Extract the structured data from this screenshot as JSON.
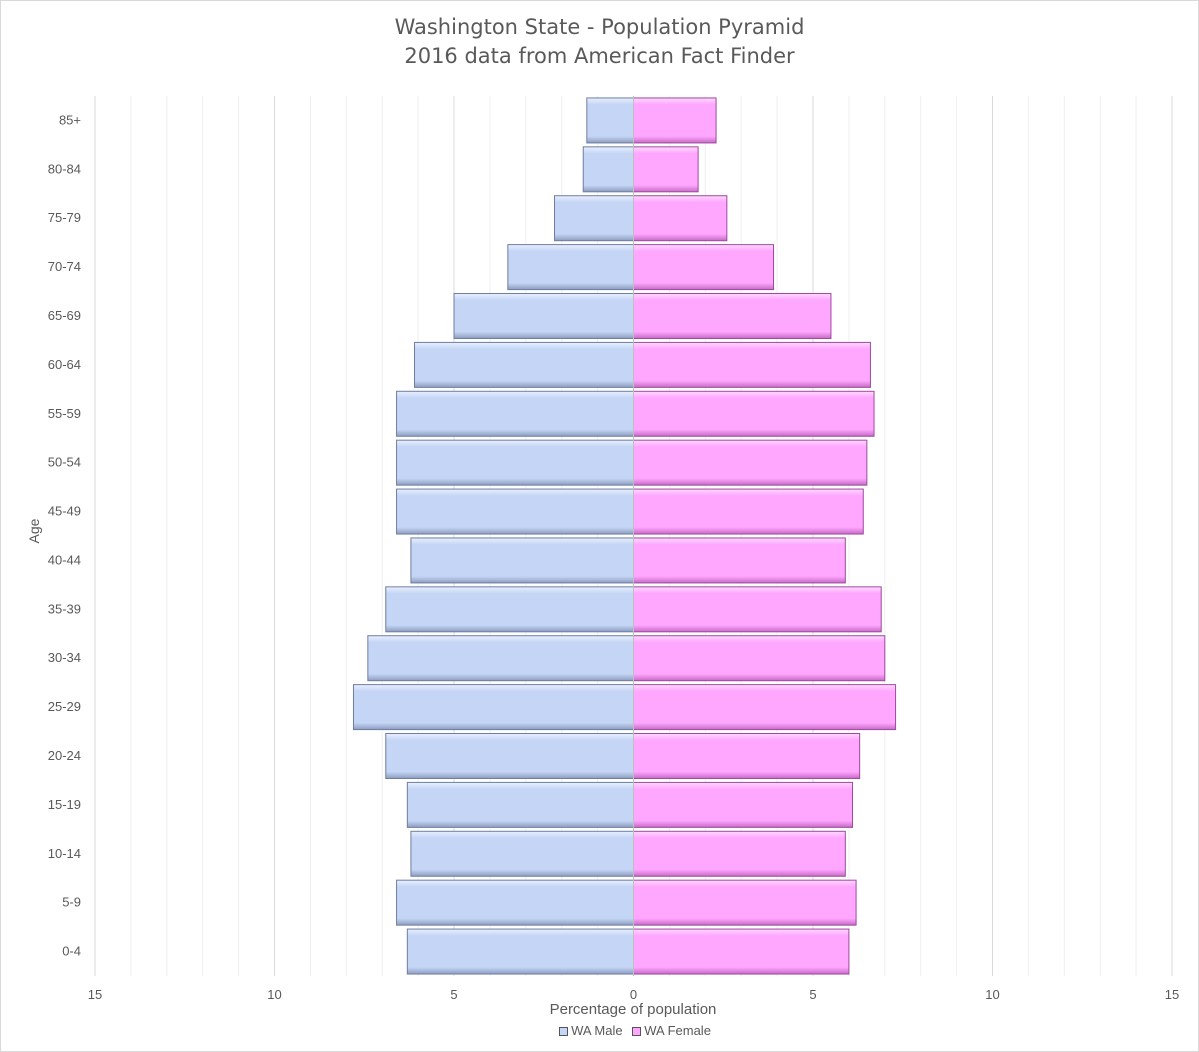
{
  "chart_data": {
    "type": "bar",
    "orientation": "horizontal",
    "title": "Washington State - Population Pyramid",
    "subtitle": "2016 data from American Fact Finder",
    "xlabel": "Percentage of population",
    "ylabel": "Age",
    "xlim": [
      -15,
      15
    ],
    "x_ticks": [
      "15",
      "10",
      "5",
      "0",
      "5",
      "10",
      "15"
    ],
    "grid": true,
    "legend_position": "bottom",
    "categories": [
      "0-4",
      "5-9",
      "10-14",
      "15-19",
      "20-24",
      "25-29",
      "30-34",
      "35-39",
      "40-44",
      "45-49",
      "50-54",
      "55-59",
      "60-64",
      "65-69",
      "70-74",
      "75-79",
      "80-84",
      "85+"
    ],
    "series": [
      {
        "name": "WA Male",
        "color": "#c4d5f5",
        "values": [
          -6.3,
          -6.6,
          -6.2,
          -6.3,
          -6.9,
          -7.8,
          -7.4,
          -6.9,
          -6.2,
          -6.6,
          -6.6,
          -6.6,
          -6.1,
          -5.0,
          -3.5,
          -2.2,
          -1.4,
          -1.3
        ]
      },
      {
        "name": "WA Female",
        "color": "#ffa6ff",
        "values": [
          6.0,
          6.2,
          5.9,
          6.1,
          6.3,
          7.3,
          7.0,
          6.9,
          5.9,
          6.4,
          6.5,
          6.7,
          6.6,
          5.5,
          3.9,
          2.6,
          1.8,
          2.3
        ]
      }
    ]
  }
}
